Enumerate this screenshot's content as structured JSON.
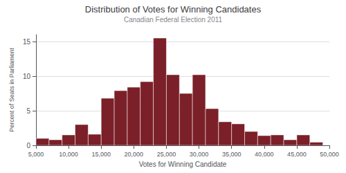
{
  "chart_data": {
    "type": "histogram",
    "title": "Distribution of Votes for Winning Candidates",
    "subtitle": "Canadian Federal Election 2011",
    "xlabel": "Votes for Winning Candidate",
    "ylabel": "Percent of Seats in Parliament",
    "bins": [
      5000,
      7000,
      9000,
      11000,
      13000,
      15000,
      17000,
      19000,
      21000,
      23000,
      25000,
      27000,
      29000,
      31000,
      33000,
      35000,
      37000,
      39000,
      41000,
      43000,
      45000,
      47000,
      49000
    ],
    "values": [
      1.0,
      0.8,
      1.5,
      3.0,
      1.6,
      6.8,
      7.9,
      8.4,
      9.2,
      15.5,
      10.2,
      7.5,
      10.2,
      5.3,
      3.4,
      3.1,
      2.0,
      1.4,
      1.5,
      0.8,
      1.5,
      0.45
    ],
    "color": "#7B2028",
    "xlim": [
      5000,
      50000
    ],
    "ylim": [
      0,
      16
    ],
    "xticks": [
      {
        "value": 5000,
        "label": "5,000"
      },
      {
        "value": 10000,
        "label": "10,000"
      },
      {
        "value": 15000,
        "label": "15,000"
      },
      {
        "value": 20000,
        "label": "20,000"
      },
      {
        "value": 25000,
        "label": "25,000"
      },
      {
        "value": 30000,
        "label": "30,000"
      },
      {
        "value": 35000,
        "label": "35,000"
      },
      {
        "value": 40000,
        "label": "40,000"
      },
      {
        "value": 45000,
        "label": "45,000"
      },
      {
        "value": 50000,
        "label": "50,000"
      }
    ],
    "yticks": [
      0,
      5,
      10,
      15
    ],
    "grid": true
  }
}
